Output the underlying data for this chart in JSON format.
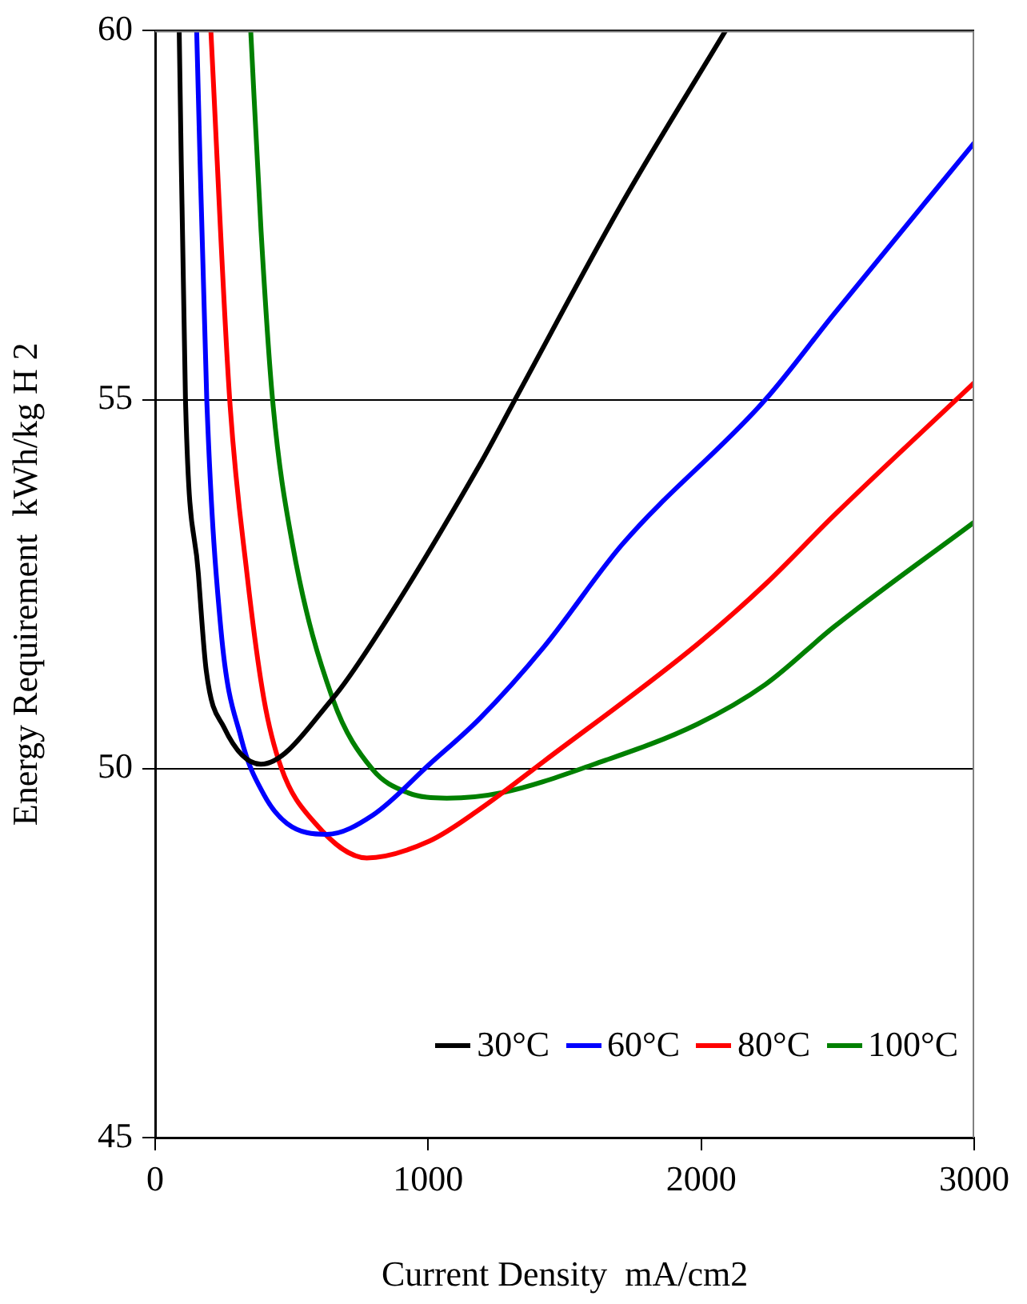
{
  "chart_data": {
    "type": "line",
    "xlabel": "Current Density  mA/cm2",
    "ylabel": "Energy Requirement  kWh/kg H 2",
    "xlim": [
      0,
      3000
    ],
    "xticks": [
      0,
      1000,
      2000,
      3000
    ],
    "ylim": [
      45,
      60
    ],
    "yticks": [
      45,
      50,
      55,
      60
    ],
    "grid": "y",
    "legend": "bottom right",
    "marker": "none",
    "line_style": "solid",
    "series": [
      {
        "name": "30°C",
        "color": "#000000",
        "x": [
          88,
          111,
          158,
          187,
          252,
          387,
          650,
          797,
          1189,
          1318,
          1716,
          2089
        ],
        "values": [
          60,
          55,
          52.65,
          51.33,
          50.56,
          50.06,
          50.95,
          51.72,
          54.12,
          55,
          57.7,
          60
        ]
      },
      {
        "name": "60°C",
        "color": "#0000ff",
        "x": [
          152,
          189,
          241,
          315,
          398,
          482,
          629,
          797,
          1005,
          1189,
          1424,
          1711,
          2235,
          2486,
          3000
        ],
        "values": [
          60,
          55,
          51.88,
          50.41,
          49.65,
          49.26,
          49.11,
          49.37,
          50.06,
          50.68,
          51.65,
          53.04,
          55,
          56.16,
          58.48
        ]
      },
      {
        "name": "80°C",
        "color": "#ff0000",
        "x": [
          204,
          273,
          336,
          398,
          461,
          586,
          775,
          1005,
          1189,
          1424,
          1984,
          2235,
          2486,
          3000
        ],
        "values": [
          60,
          55,
          52.65,
          50.95,
          50.02,
          49.26,
          48.79,
          49.02,
          49.45,
          50.1,
          51.68,
          52.5,
          53.43,
          55.23
        ]
      },
      {
        "name": "100°C",
        "color": "#008000",
        "x": [
          350,
          388,
          430,
          503,
          650,
          796,
          921,
          1068,
          1277,
          1608,
          1984,
          2235,
          2486,
          3000
        ],
        "values": [
          60,
          57.28,
          55,
          53.04,
          50.95,
          49.99,
          49.68,
          49.6,
          49.68,
          50.06,
          50.6,
          51.14,
          51.92,
          53.34
        ]
      }
    ]
  }
}
